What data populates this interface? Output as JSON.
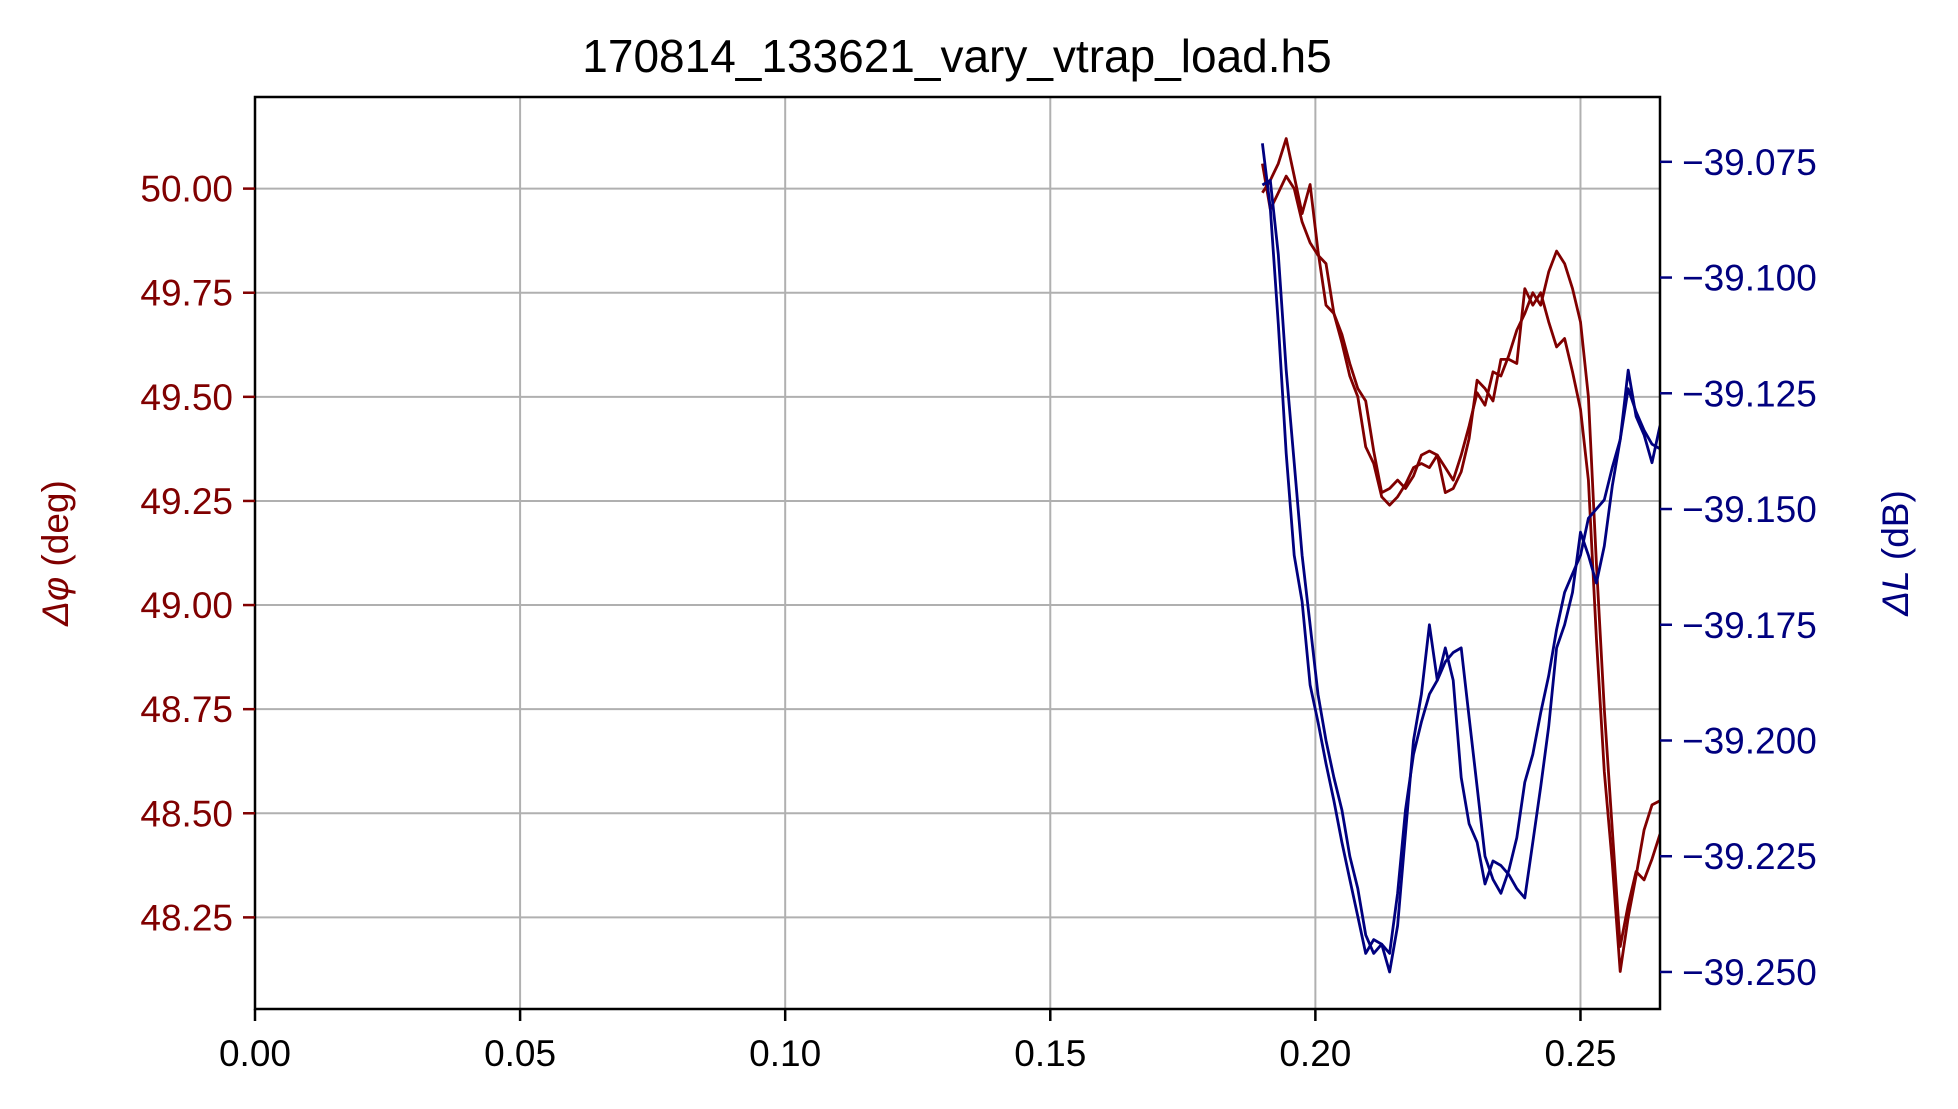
{
  "chart_data": {
    "type": "line",
    "title": "170814_133621_vary_vtrap_load.h5",
    "xlim": [
      0.0,
      0.265
    ],
    "x_ticks": [
      "0.00",
      "0.05",
      "0.10",
      "0.15",
      "0.20",
      "0.25"
    ],
    "y_left": {
      "label_symbol": "Δφ",
      "label_unit": "(deg)",
      "color": "#800000",
      "lim": [
        48.03,
        50.22
      ],
      "ticks": [
        "48.25",
        "48.50",
        "48.75",
        "49.00",
        "49.25",
        "49.50",
        "49.75",
        "50.00"
      ]
    },
    "y_right": {
      "label_symbol": "ΔL",
      "label_unit": "(dB)",
      "color": "#00007f",
      "lim": [
        -39.258,
        -39.061
      ],
      "ticks": [
        "−39.075",
        "−39.100",
        "−39.125",
        "−39.150",
        "−39.175",
        "−39.200",
        "−39.225",
        "−39.250"
      ]
    },
    "grid": true,
    "series": [
      {
        "axis": "left",
        "x": [
          0.19,
          0.1915,
          0.193,
          0.1945,
          0.196,
          0.1975,
          0.199,
          0.2005,
          0.202,
          0.2035,
          0.205,
          0.2065,
          0.208,
          0.2095,
          0.211,
          0.2125,
          0.214,
          0.2155,
          0.217,
          0.2185,
          0.22,
          0.2215,
          0.223,
          0.2245,
          0.226,
          0.2275,
          0.229,
          0.2305,
          0.232,
          0.2335,
          0.235,
          0.2365,
          0.238,
          0.2395,
          0.241,
          0.2425,
          0.244,
          0.2455,
          0.247,
          0.2485,
          0.25,
          0.2515,
          0.253,
          0.2545,
          0.256,
          0.2575,
          0.259,
          0.2605,
          0.262,
          0.2635,
          0.265
        ],
        "values": [
          50.06,
          49.95,
          49.99,
          50.03,
          50.0,
          49.92,
          49.87,
          49.84,
          49.82,
          49.7,
          49.65,
          49.58,
          49.52,
          49.49,
          49.37,
          49.27,
          49.28,
          49.3,
          49.28,
          49.31,
          49.36,
          49.37,
          49.36,
          49.33,
          49.3,
          49.36,
          49.43,
          49.51,
          49.48,
          49.56,
          49.55,
          49.6,
          49.66,
          49.7,
          49.75,
          49.72,
          49.8,
          49.85,
          49.82,
          49.76,
          49.68,
          49.5,
          49.1,
          48.75,
          48.46,
          48.18,
          48.28,
          48.36,
          48.34,
          48.39,
          48.45
        ]
      },
      {
        "axis": "left",
        "x": [
          0.19,
          0.1915,
          0.193,
          0.1945,
          0.196,
          0.1975,
          0.199,
          0.2005,
          0.202,
          0.2035,
          0.205,
          0.2065,
          0.208,
          0.2095,
          0.211,
          0.2125,
          0.214,
          0.2155,
          0.217,
          0.2185,
          0.22,
          0.2215,
          0.223,
          0.2245,
          0.226,
          0.2275,
          0.229,
          0.2305,
          0.232,
          0.2335,
          0.235,
          0.2365,
          0.238,
          0.2395,
          0.241,
          0.2425,
          0.244,
          0.2455,
          0.247,
          0.2485,
          0.25,
          0.2515,
          0.253,
          0.2545,
          0.256,
          0.2575,
          0.259,
          0.2605,
          0.262,
          0.2635,
          0.265
        ],
        "values": [
          49.99,
          50.02,
          50.06,
          50.12,
          50.03,
          49.94,
          50.01,
          49.85,
          49.72,
          49.7,
          49.63,
          49.55,
          49.5,
          49.38,
          49.34,
          49.26,
          49.24,
          49.26,
          49.29,
          49.33,
          49.34,
          49.33,
          49.36,
          49.27,
          49.28,
          49.32,
          49.4,
          49.54,
          49.52,
          49.49,
          49.59,
          49.59,
          49.58,
          49.76,
          49.72,
          49.75,
          49.68,
          49.62,
          49.64,
          49.56,
          49.47,
          49.3,
          48.92,
          48.6,
          48.38,
          48.12,
          48.25,
          48.35,
          48.46,
          48.52,
          48.53
        ]
      },
      {
        "axis": "right",
        "x": [
          0.19,
          0.1915,
          0.193,
          0.1945,
          0.196,
          0.1975,
          0.199,
          0.2005,
          0.202,
          0.2035,
          0.205,
          0.2065,
          0.208,
          0.2095,
          0.211,
          0.2125,
          0.214,
          0.2155,
          0.217,
          0.2185,
          0.22,
          0.2215,
          0.223,
          0.2245,
          0.226,
          0.2275,
          0.229,
          0.2305,
          0.232,
          0.2335,
          0.235,
          0.2365,
          0.238,
          0.2395,
          0.241,
          0.2425,
          0.244,
          0.2455,
          0.247,
          0.2485,
          0.25,
          0.2515,
          0.253,
          0.2545,
          0.256,
          0.2575,
          0.259,
          0.2605,
          0.262,
          0.2635,
          0.265
        ],
        "values": [
          -39.08,
          -39.079,
          -39.095,
          -39.12,
          -39.14,
          -39.16,
          -39.175,
          -39.19,
          -39.2,
          -39.208,
          -39.215,
          -39.225,
          -39.232,
          -39.242,
          -39.246,
          -39.244,
          -39.246,
          -39.233,
          -39.215,
          -39.203,
          -39.196,
          -39.19,
          -39.187,
          -39.183,
          -39.181,
          -39.18,
          -39.195,
          -39.21,
          -39.225,
          -39.23,
          -39.233,
          -39.228,
          -39.221,
          -39.209,
          -39.203,
          -39.194,
          -39.186,
          -39.176,
          -39.168,
          -39.164,
          -39.16,
          -39.152,
          -39.15,
          -39.148,
          -39.141,
          -39.135,
          -39.124,
          -39.129,
          -39.133,
          -39.136,
          -39.137
        ]
      },
      {
        "axis": "right",
        "x": [
          0.19,
          0.1915,
          0.193,
          0.1945,
          0.196,
          0.1975,
          0.199,
          0.2005,
          0.202,
          0.2035,
          0.205,
          0.2065,
          0.208,
          0.2095,
          0.211,
          0.2125,
          0.214,
          0.2155,
          0.217,
          0.2185,
          0.22,
          0.2215,
          0.223,
          0.2245,
          0.226,
          0.2275,
          0.229,
          0.2305,
          0.232,
          0.2335,
          0.235,
          0.2365,
          0.238,
          0.2395,
          0.241,
          0.2425,
          0.244,
          0.2455,
          0.247,
          0.2485,
          0.25,
          0.2515,
          0.253,
          0.2545,
          0.256,
          0.2575,
          0.259,
          0.2605,
          0.262,
          0.2635,
          0.265
        ],
        "values": [
          -39.071,
          -39.085,
          -39.11,
          -39.138,
          -39.16,
          -39.17,
          -39.188,
          -39.196,
          -39.205,
          -39.213,
          -39.222,
          -39.23,
          -39.238,
          -39.246,
          -39.243,
          -39.244,
          -39.25,
          -39.24,
          -39.22,
          -39.2,
          -39.19,
          -39.175,
          -39.187,
          -39.18,
          -39.187,
          -39.208,
          -39.218,
          -39.222,
          -39.231,
          -39.226,
          -39.227,
          -39.229,
          -39.232,
          -39.234,
          -39.222,
          -39.21,
          -39.197,
          -39.18,
          -39.175,
          -39.168,
          -39.155,
          -39.16,
          -39.166,
          -39.158,
          -39.145,
          -39.135,
          -39.12,
          -39.13,
          -39.134,
          -39.14,
          -39.132
        ]
      }
    ]
  }
}
